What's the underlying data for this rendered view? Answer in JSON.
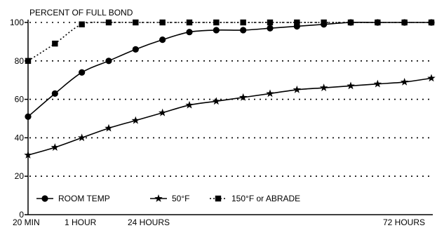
{
  "chart_data": {
    "type": "line",
    "title": "PERCENT OF FULL BOND",
    "xlabel": "",
    "ylabel": "",
    "ylim": [
      0,
      100
    ],
    "y_ticks": [
      "0",
      "20",
      "40",
      "60",
      "80",
      "100"
    ],
    "x_tick_labels": [
      "20 MIN",
      "1 HOUR",
      "24 HOURS",
      "72 HOURS"
    ],
    "x": [
      0,
      1,
      2,
      3,
      4,
      5,
      6,
      7,
      8,
      9,
      10,
      11,
      12,
      13,
      14,
      15
    ],
    "grid": true,
    "legend_position": "bottom-left",
    "series": [
      {
        "name": "ROOM TEMP",
        "marker": "circle",
        "values": [
          51,
          63,
          74,
          80,
          86,
          91,
          95,
          96,
          96,
          97,
          98,
          99,
          100,
          100,
          100,
          100
        ]
      },
      {
        "name": "50°F",
        "marker": "star",
        "values": [
          31,
          35,
          40,
          45,
          49,
          53,
          57,
          59,
          61,
          63,
          65,
          66,
          67,
          68,
          69,
          71
        ]
      },
      {
        "name": "150°F or ABRADE",
        "marker": "square",
        "values": [
          80,
          89,
          99,
          100,
          100,
          100,
          100,
          100,
          100,
          100,
          100,
          100,
          100,
          100,
          100,
          100
        ]
      }
    ]
  }
}
